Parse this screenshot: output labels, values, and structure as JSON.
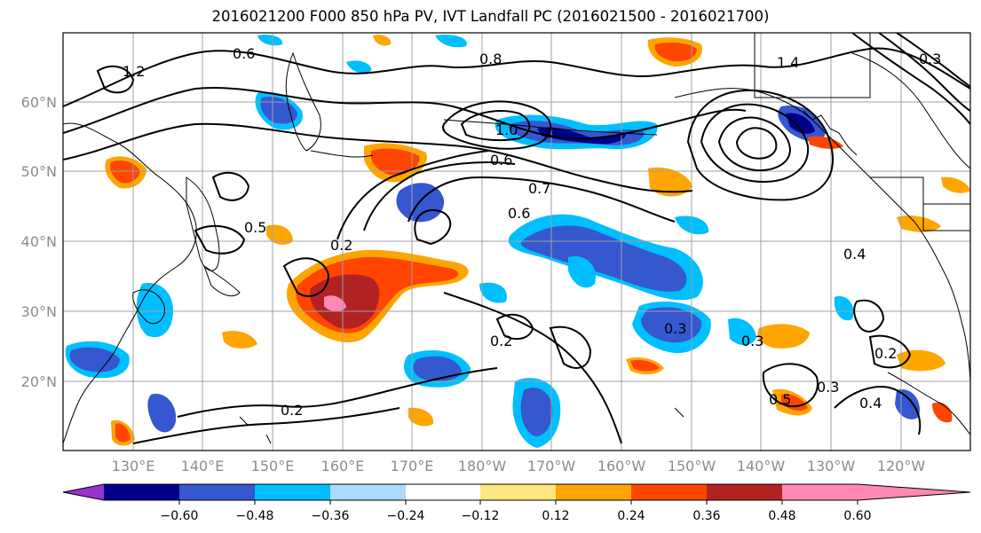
{
  "title": "2016021200 F000 850 hPa PV, IVT Landfall PC (2016021500 - 2016021700)",
  "map": {
    "lat_labels": [
      "60°N",
      "50°N",
      "40°N",
      "30°N",
      "20°N"
    ],
    "lon_labels": [
      "130°E",
      "140°E",
      "150°E",
      "160°E",
      "170°E",
      "180°W",
      "170°W",
      "160°W",
      "150°W",
      "140°W",
      "130°W",
      "120°W"
    ],
    "contour_labels": [
      "1.2",
      "0.8",
      "0.6",
      "1.4",
      "0.3",
      "1.0",
      "0.6",
      "0.7",
      "0.6",
      "0.5",
      "0.2",
      "0.4",
      "0.2",
      "0.3",
      "0.3",
      "0.2",
      "0.5",
      "0.3",
      "0.4",
      "0.2"
    ]
  },
  "colorbar": {
    "ticks": [
      "−0.60",
      "−0.48",
      "−0.36",
      "−0.24",
      "−0.12",
      "0.12",
      "0.24",
      "0.36",
      "0.48",
      "0.60"
    ],
    "colors": {
      "under": "#9932cc",
      "levels": [
        "#00008b",
        "#3557cf",
        "#00bfff",
        "#add8ff",
        "#ffffff",
        "#ffe680",
        "#ffa500",
        "#ff4500",
        "#b22222",
        "#ff88b4"
      ]
    }
  }
}
